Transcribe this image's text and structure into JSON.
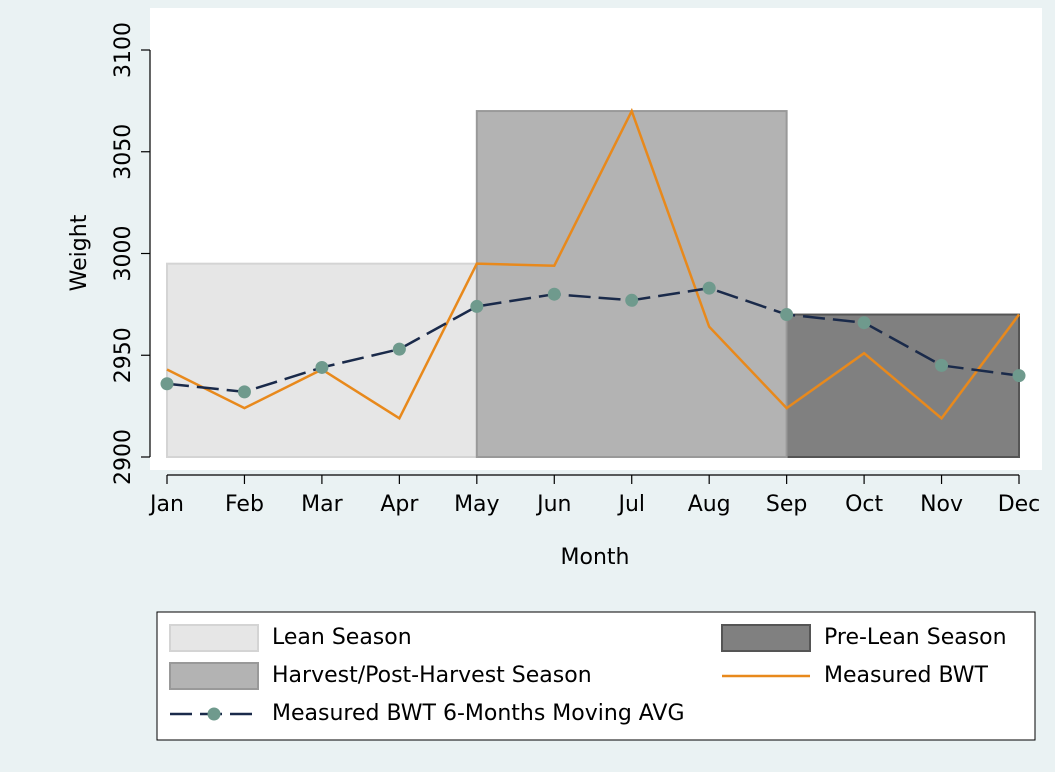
{
  "chart_data": {
    "type": "line",
    "x_label": "Month",
    "y_label": "Weight",
    "categories": [
      "Jan",
      "Feb",
      "Mar",
      "Apr",
      "May",
      "Jun",
      "Jul",
      "Aug",
      "Sep",
      "Oct",
      "Nov",
      "Dec"
    ],
    "ylim": [
      2900,
      3100
    ],
    "yticks": [
      2900,
      2950,
      3000,
      3050,
      3100
    ],
    "series": [
      {
        "name": "Lean Season",
        "kind": "band",
        "color": "#e6e6e6",
        "values": [
          2995,
          2995,
          2995,
          2995,
          2995,
          null,
          null,
          null,
          null,
          null,
          null,
          null
        ]
      },
      {
        "name": "Pre-Lean Season",
        "kind": "band",
        "color": "#808080",
        "values": [
          null,
          null,
          null,
          null,
          null,
          null,
          null,
          null,
          2970,
          2970,
          2970,
          2970
        ]
      },
      {
        "name": "Harvest/Post-Harvest Season",
        "kind": "band",
        "color": "#b3b3b3",
        "values": [
          null,
          null,
          null,
          null,
          3070,
          3070,
          3070,
          3070,
          3070,
          null,
          null,
          null
        ]
      },
      {
        "name": "Measured BWT",
        "kind": "line",
        "color": "#e8891c",
        "values": [
          2943,
          2924,
          2943,
          2919,
          2995,
          2994,
          3070,
          2964,
          2924,
          2951,
          2919,
          2970
        ]
      },
      {
        "name": "Measured BWT 6-Months Moving AVG",
        "kind": "dashed-markers",
        "color": "#1a2a4a",
        "marker_color": "#6f9a8d",
        "values": [
          2936,
          2932,
          2944,
          2953,
          2974,
          2980,
          2977,
          2983,
          2970,
          2966,
          2945,
          2940
        ]
      }
    ]
  }
}
